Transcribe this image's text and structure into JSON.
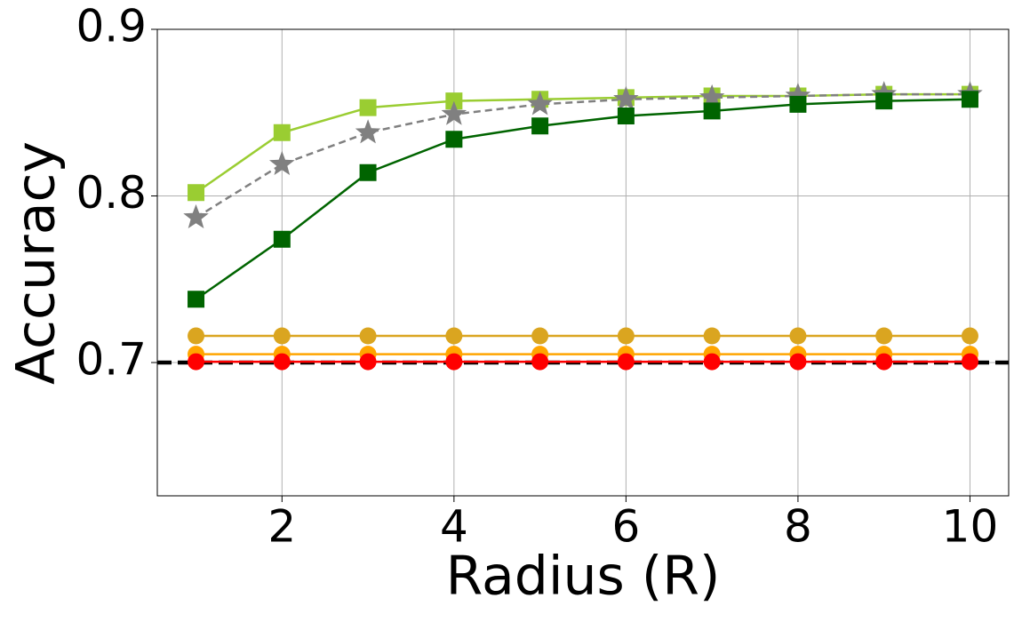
{
  "chart_data": {
    "type": "line",
    "x_label": "Radius (R)",
    "y_label": "Accuracy",
    "x": [
      1,
      2,
      3,
      4,
      5,
      6,
      7,
      8,
      9,
      10
    ],
    "series": [
      {
        "color": "#9acd32",
        "marker": "square",
        "linestyle": "solid",
        "values": [
          0.802,
          0.838,
          0.853,
          0.857,
          0.858,
          0.859,
          0.86,
          0.86,
          0.861,
          0.861
        ]
      },
      {
        "color": "#808080",
        "marker": "star",
        "linestyle": "dashed",
        "values": [
          0.787,
          0.819,
          0.838,
          0.849,
          0.855,
          0.858,
          0.859,
          0.86,
          0.861,
          0.861
        ]
      },
      {
        "color": "#006400",
        "marker": "square",
        "linestyle": "solid",
        "values": [
          0.738,
          0.774,
          0.814,
          0.834,
          0.842,
          0.848,
          0.851,
          0.855,
          0.857,
          0.858
        ]
      },
      {
        "color": "#daa520",
        "marker": "circle",
        "linestyle": "solid",
        "values": [
          0.716,
          0.716,
          0.716,
          0.716,
          0.716,
          0.716,
          0.716,
          0.716,
          0.716,
          0.716
        ]
      },
      {
        "color": "#ffa500",
        "marker": "circle",
        "linestyle": "solid",
        "values": [
          0.705,
          0.705,
          0.705,
          0.705,
          0.705,
          0.705,
          0.705,
          0.705,
          0.705,
          0.705
        ]
      },
      {
        "color": "#ff0000",
        "marker": "circle",
        "linestyle": "solid",
        "values": [
          0.7005,
          0.7005,
          0.7005,
          0.7005,
          0.7005,
          0.7005,
          0.7005,
          0.7005,
          0.7005,
          0.7005
        ]
      }
    ],
    "hlines": [
      {
        "y": 0.7,
        "color": "#000000",
        "linestyle": "dashed"
      }
    ],
    "xlim": [
      0.55,
      10.45
    ],
    "ylim": [
      0.62,
      0.9
    ],
    "xticks": [
      2,
      4,
      6,
      8,
      10
    ],
    "yticks": [
      0.7,
      0.8,
      0.9
    ],
    "grid": true
  }
}
